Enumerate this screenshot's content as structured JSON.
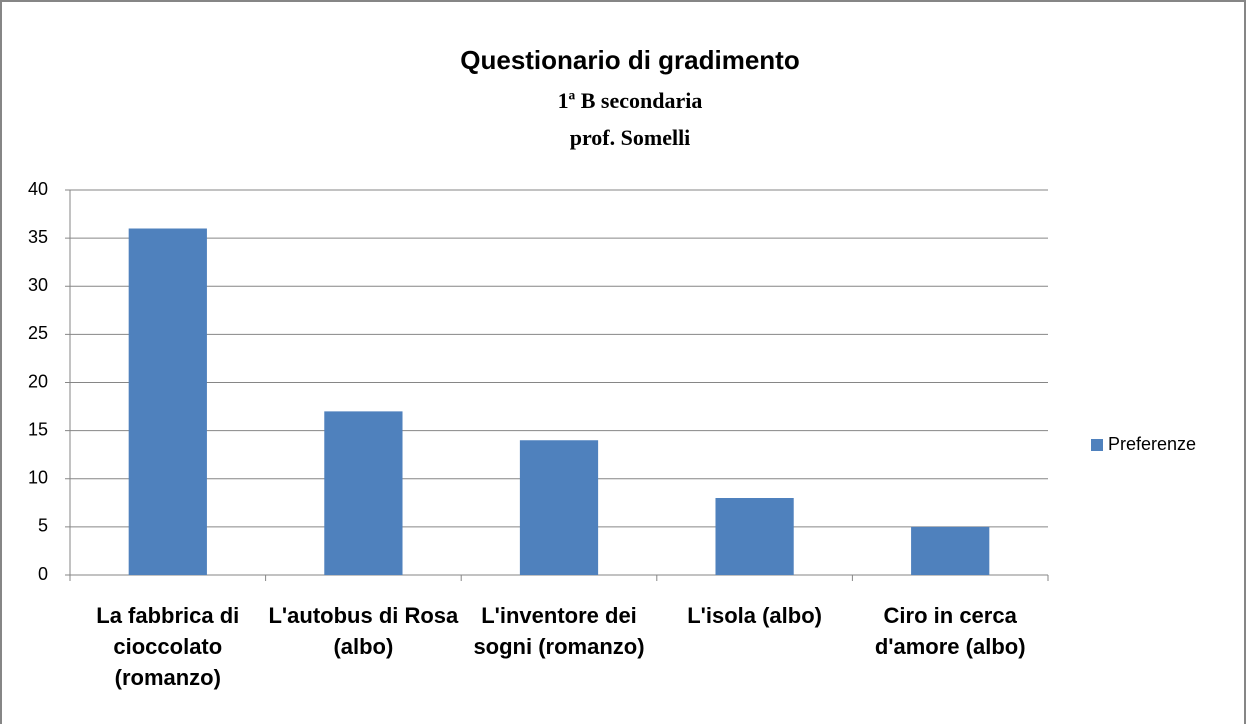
{
  "chart_data": {
    "type": "bar",
    "title": "Questionario di gradimento",
    "subtitle": [
      "1ª B secondaria",
      "prof. Somelli"
    ],
    "categories": [
      "La fabbrica di cioccolato (romanzo)",
      "L'autobus di Rosa (albo)",
      "L'inventore dei sogni (romanzo)",
      "L'isola (albo)",
      "Ciro in cerca d'amore (albo)"
    ],
    "series": [
      {
        "name": "Preferenze",
        "color": "#4f81bd",
        "values": [
          36,
          17,
          14,
          8,
          5
        ]
      }
    ],
    "ylim": [
      0,
      40
    ],
    "yticks": [
      0,
      5,
      10,
      15,
      20,
      25,
      30,
      35,
      40
    ],
    "grid": true,
    "legend": "right"
  }
}
